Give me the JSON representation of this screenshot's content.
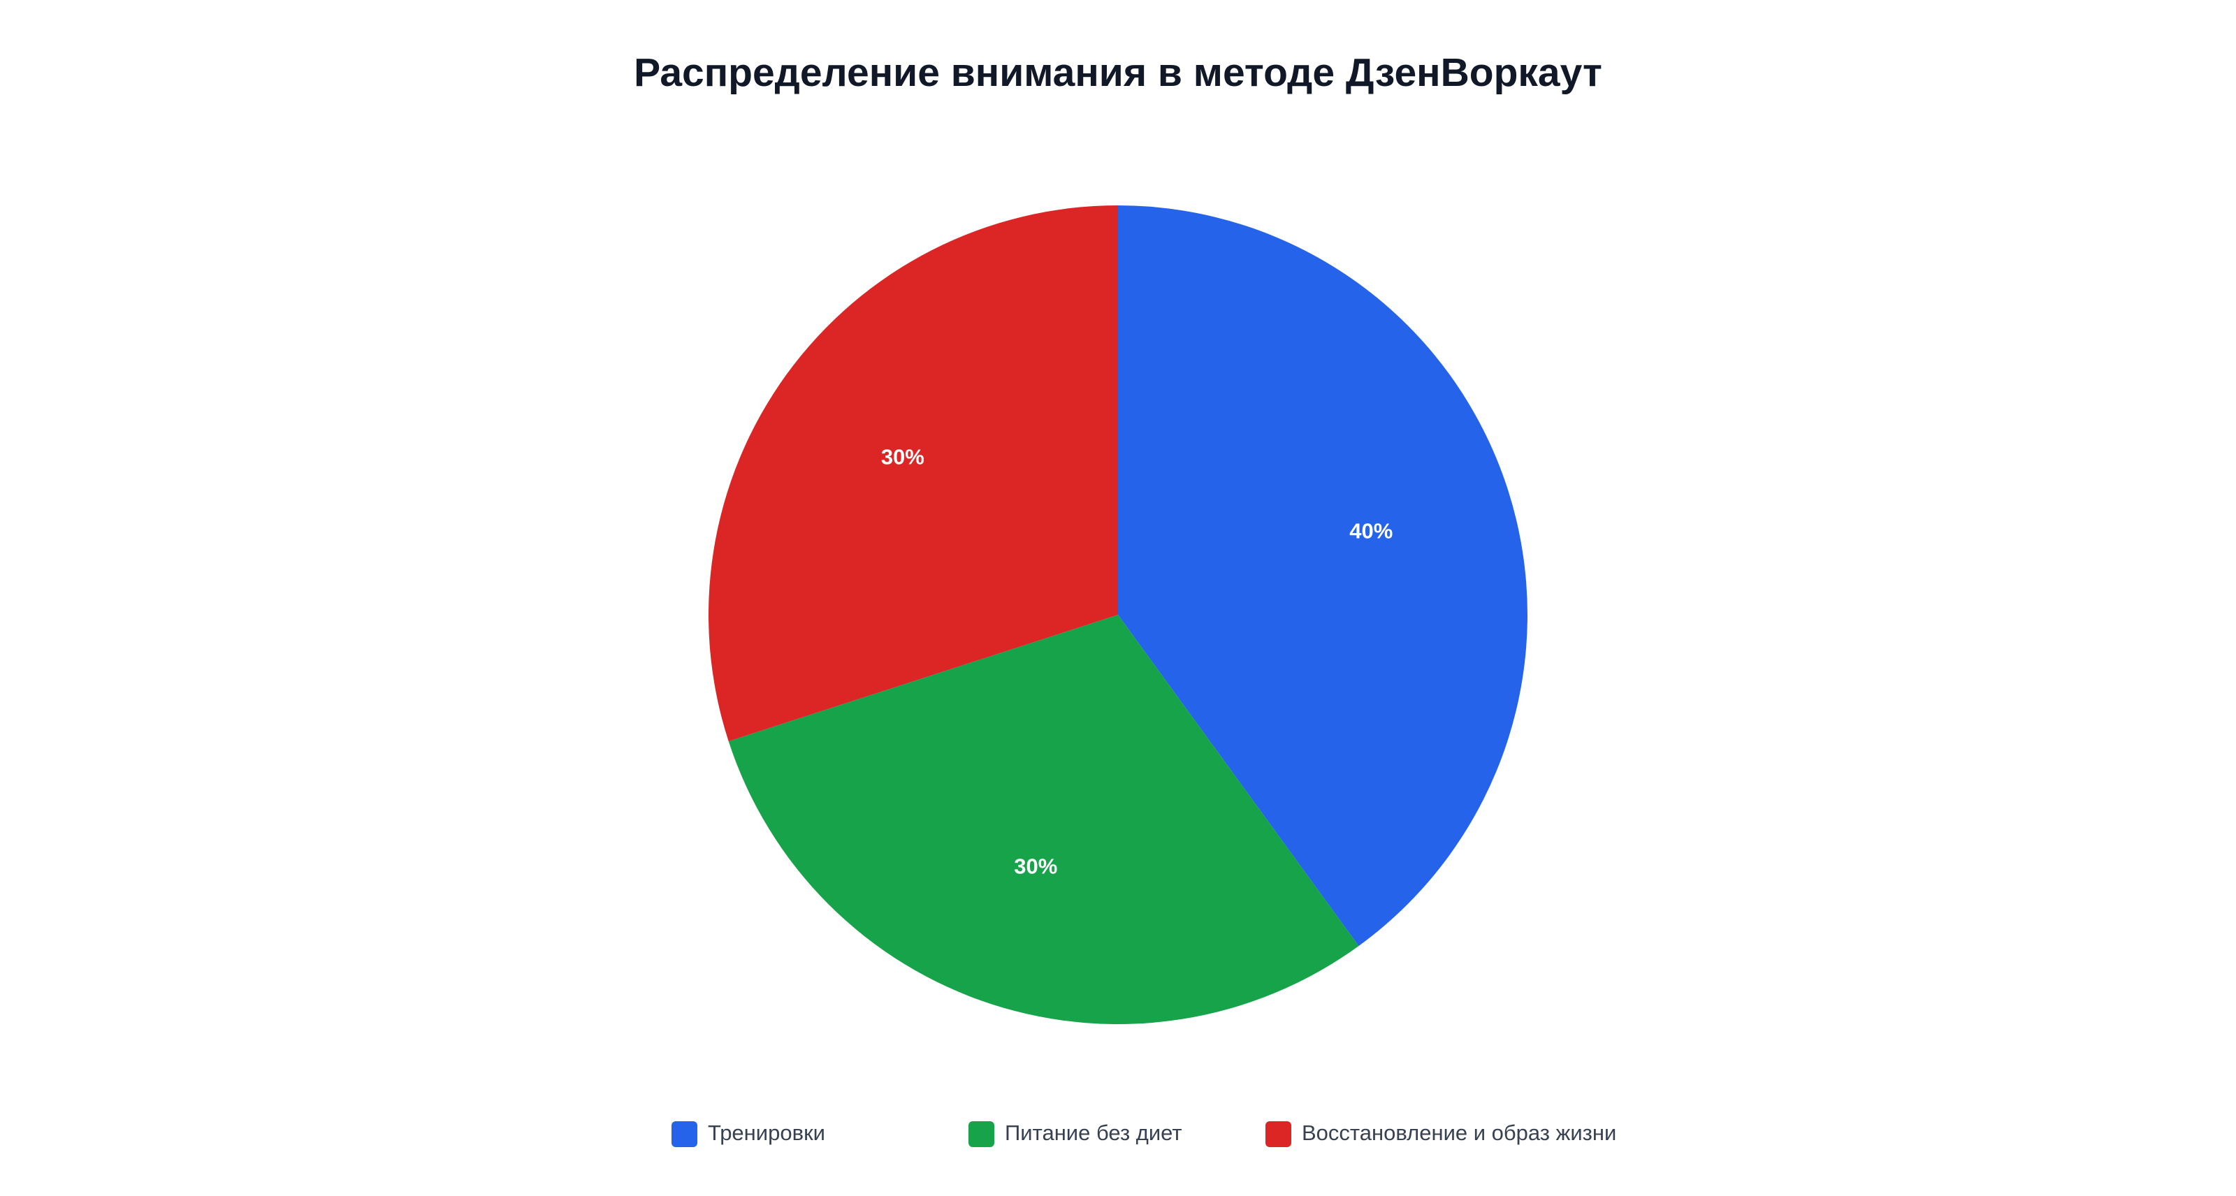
{
  "chart_data": {
    "type": "pie",
    "title": "Распределение внимания в методе ДзенВоркаут",
    "categories": [
      "Тренировки",
      "Питание без диет",
      "Восстановление и образ жизни"
    ],
    "values": [
      40,
      30,
      30
    ],
    "value_labels": [
      "40%",
      "30%",
      "30%"
    ],
    "colors": [
      "#2563eb",
      "#16a34a",
      "#dc2626"
    ],
    "legend": "bottom"
  }
}
